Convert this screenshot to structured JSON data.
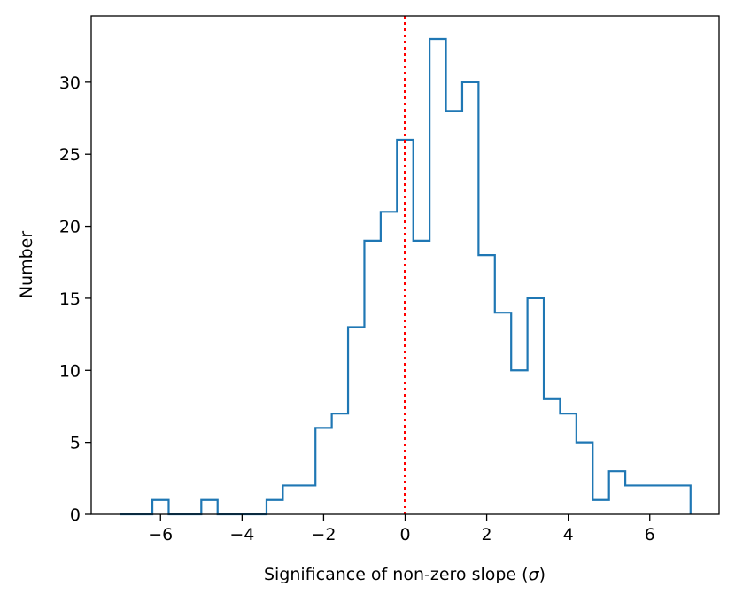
{
  "chart_data": {
    "type": "histogram",
    "title": "",
    "xlabel_main": "Significance of non-zero slope (",
    "xlabel_symbol": "σ",
    "xlabel_close": ")",
    "ylabel": "Number",
    "xlim": [
      -7.7,
      7.7
    ],
    "ylim": [
      0,
      34.6
    ],
    "x_ticks": [
      -6,
      -4,
      -2,
      0,
      2,
      4,
      6
    ],
    "x_tick_labels": [
      "−6",
      "−4",
      "−2",
      "0",
      "2",
      "4",
      "6"
    ],
    "y_ticks": [
      0,
      5,
      10,
      15,
      20,
      25,
      30
    ],
    "y_tick_labels": [
      "0",
      "5",
      "10",
      "15",
      "20",
      "25",
      "30"
    ],
    "bin_edges": [
      -7.0,
      -6.6,
      -6.2,
      -5.8,
      -5.4,
      -5.0,
      -4.6,
      -4.2,
      -3.8,
      -3.4,
      -3.0,
      -2.6,
      -2.2,
      -1.8,
      -1.4,
      -1.0,
      -0.6,
      -0.2,
      0.2,
      0.6,
      1.0,
      1.4,
      1.8,
      2.2,
      2.6,
      3.0,
      3.4,
      3.8,
      4.2,
      4.6,
      5.0,
      5.4,
      5.8,
      6.2,
      6.6,
      7.0
    ],
    "counts": [
      0,
      0,
      1,
      0,
      0,
      1,
      0,
      0,
      0,
      1,
      2,
      2,
      6,
      7,
      13,
      19,
      21,
      26,
      19,
      33,
      28,
      30,
      18,
      14,
      10,
      15,
      8,
      7,
      5,
      1,
      3,
      2,
      2,
      2,
      2
    ],
    "reference_line": {
      "x": 0,
      "style": "dotted",
      "color": "#ff0000"
    },
    "colors": {
      "histogram": "#1f77b4",
      "axes": "#000000"
    }
  }
}
